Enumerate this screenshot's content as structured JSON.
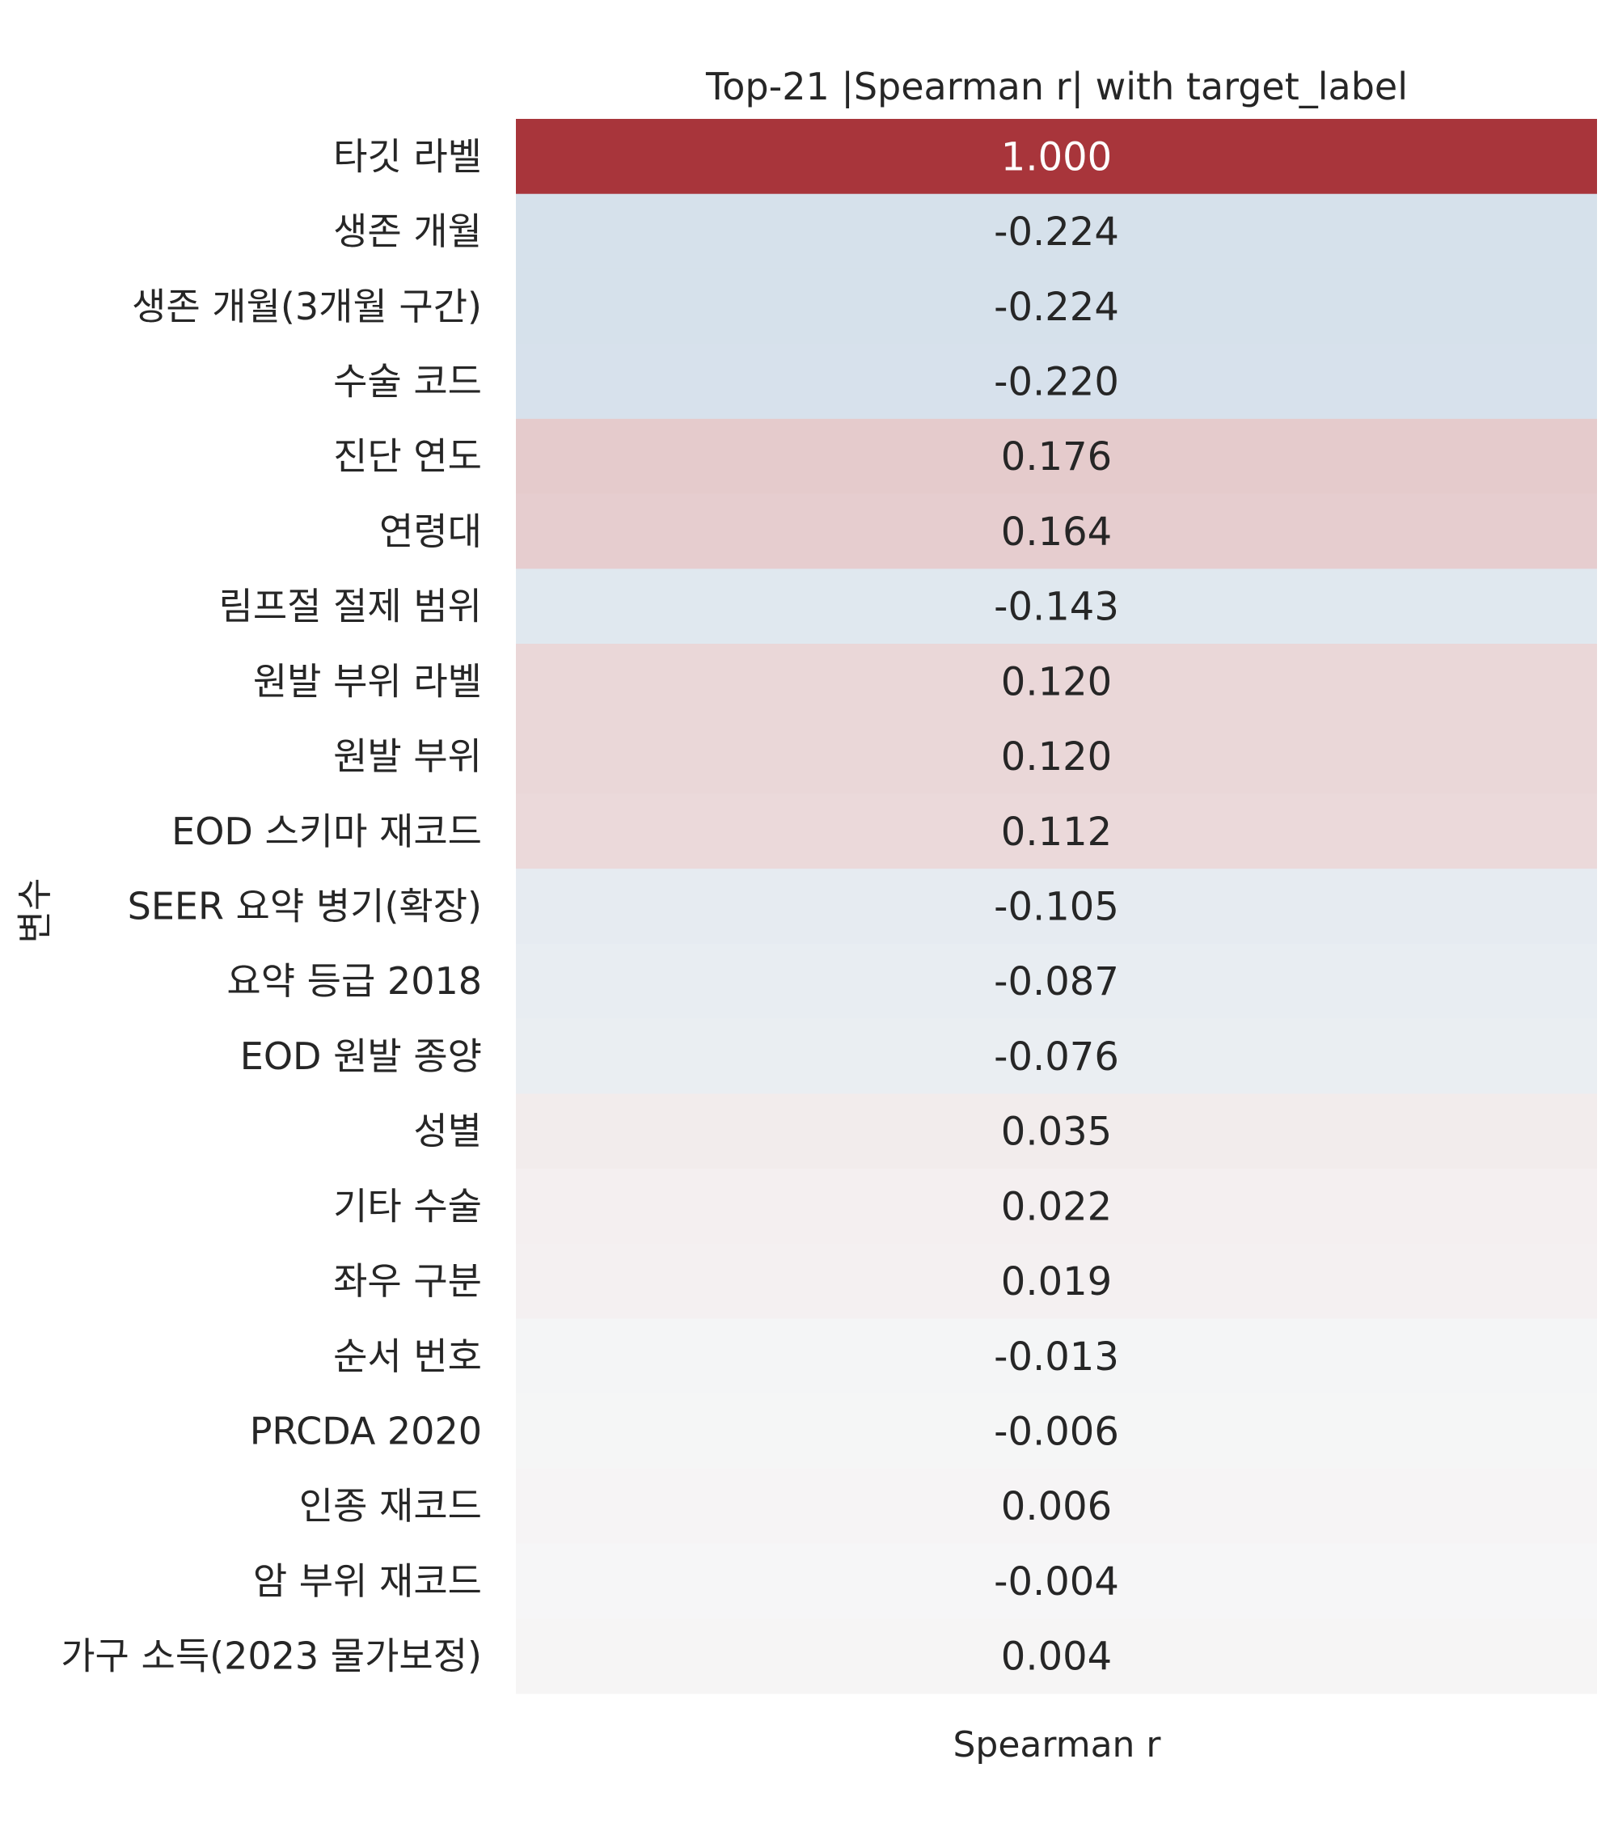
{
  "chart_data": {
    "type": "heatmap",
    "title": "Top-21 |Spearman r| with target_label",
    "xlabel": "Spearman r",
    "ylabel": "변수",
    "columns": [
      "Spearman r"
    ],
    "rows": [
      "타깃 라벨",
      "생존 개월",
      "생존 개월(3개월 구간)",
      "수술 코드",
      "진단 연도",
      "연령대",
      "림프절 절제 범위",
      "원발 부위 라벨",
      "원발 부위",
      "EOD 스키마 재코드",
      "SEER 요약 병기(확장)",
      "요약 등급 2018",
      "EOD 원발 종양",
      "성별",
      "기타 수술",
      "좌우 구분",
      "순서 번호",
      "PRCDA 2020",
      "인종 재코드",
      "암 부위 재코드",
      "가구 소득(2023 물가보정)"
    ],
    "values": [
      1.0,
      -0.224,
      -0.224,
      -0.22,
      0.176,
      0.164,
      -0.143,
      0.12,
      0.12,
      0.112,
      -0.105,
      -0.087,
      -0.076,
      0.035,
      0.022,
      0.019,
      -0.013,
      -0.006,
      0.006,
      -0.004,
      0.004
    ],
    "value_labels": [
      "1.000",
      "-0.224",
      "-0.224",
      "-0.220",
      "0.176",
      "0.164",
      "-0.143",
      "0.120",
      "0.120",
      "0.112",
      "-0.105",
      "-0.087",
      "-0.076",
      "0.035",
      "0.022",
      "0.019",
      "-0.013",
      "-0.006",
      "0.006",
      "-0.004",
      "0.004"
    ],
    "colormap": "diverging blue-white-red",
    "color_range": [
      -1,
      1
    ],
    "colors": {
      "negative": "#2166ac",
      "neutral": "#f7f7f7",
      "positive": "#a8353b"
    },
    "colorbar": false
  }
}
